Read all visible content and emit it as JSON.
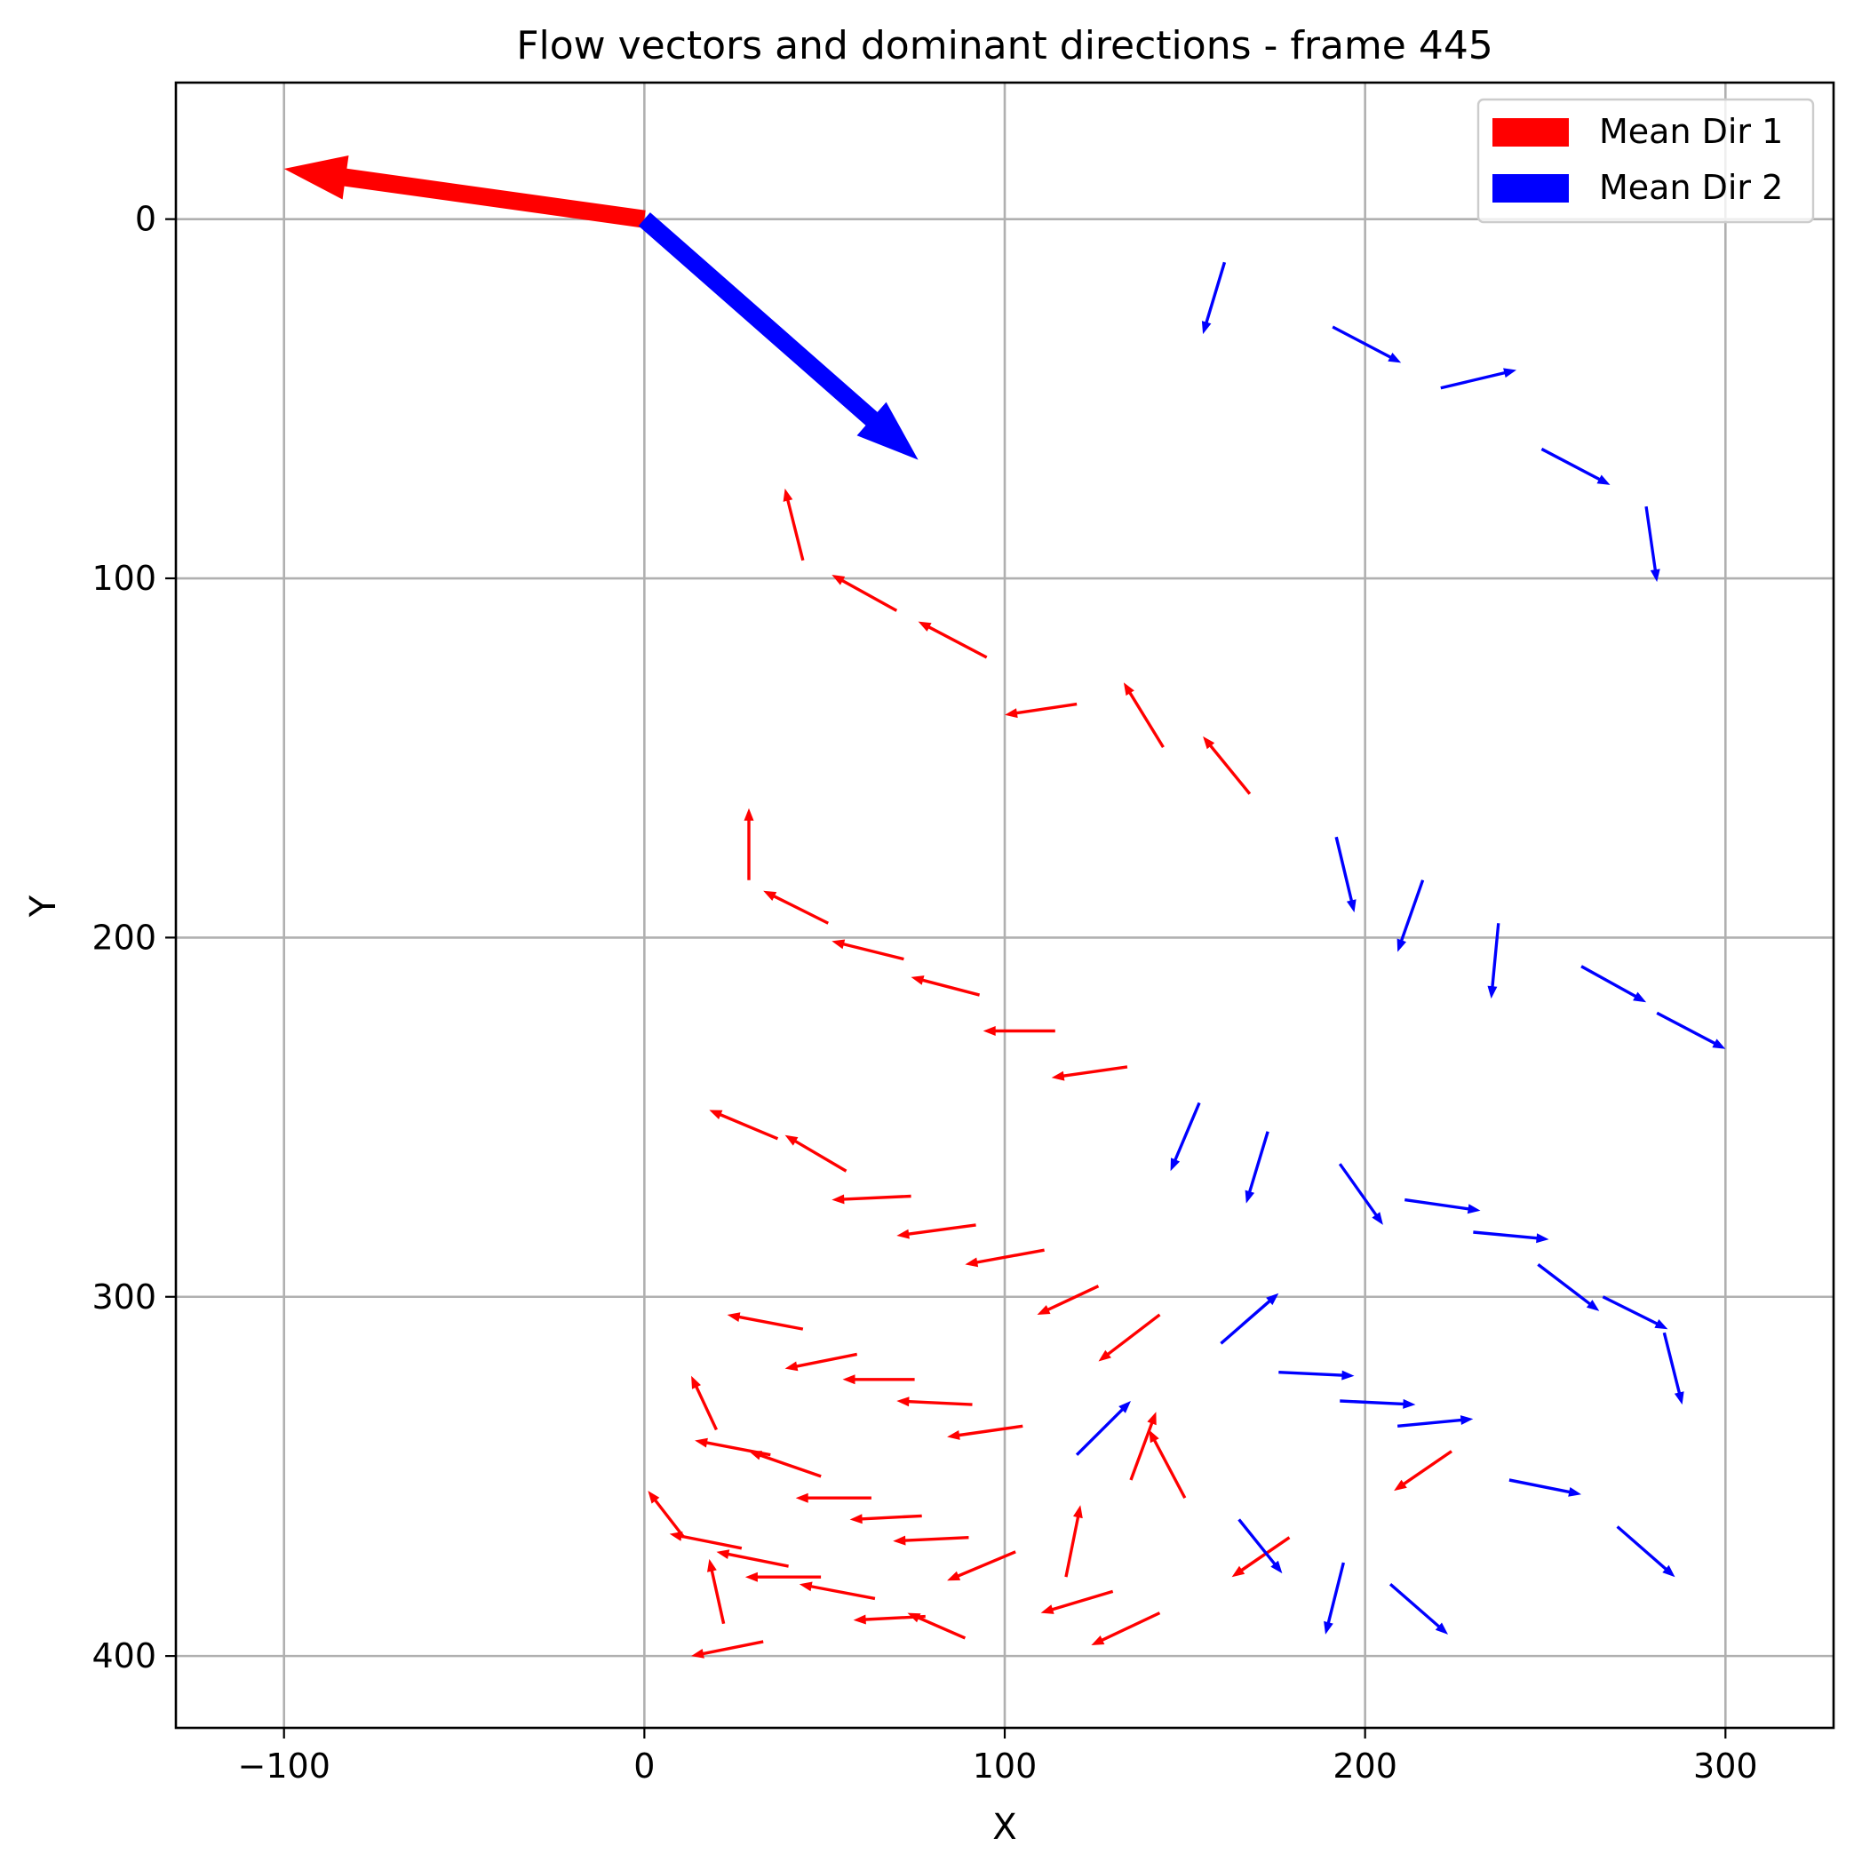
{
  "chart_data": {
    "type": "quiver",
    "title": "Flow vectors and dominant directions - frame 445",
    "xlabel": "X",
    "ylabel": "Y",
    "xlim": [
      -130,
      330
    ],
    "ylim": [
      -38,
      420
    ],
    "y_inverted": true,
    "grid": true,
    "x_ticks": [
      -100,
      0,
      100,
      200,
      300
    ],
    "x_tick_labels": [
      "−100",
      "0",
      "100",
      "200",
      "300"
    ],
    "y_ticks": [
      0,
      100,
      200,
      300,
      400
    ],
    "y_tick_labels": [
      "0",
      "100",
      "200",
      "300",
      "400"
    ],
    "legend": {
      "position": "top-right",
      "entries": [
        {
          "label": "Mean Dir 1",
          "color": "#ff0000"
        },
        {
          "label": "Mean Dir 2",
          "color": "#0000ff"
        }
      ]
    },
    "mean_directions": [
      {
        "name": "Mean Dir 1",
        "color": "#ff0000",
        "x": 0,
        "y": 0,
        "dx": -100,
        "dy": -14
      },
      {
        "name": "Mean Dir 2",
        "color": "#0000ff",
        "x": 0,
        "y": 0,
        "dx": 76,
        "dy": 67
      }
    ],
    "series": [
      {
        "name": "Mean Dir 1 vectors",
        "color": "#ff0000",
        "vectors": [
          [
            44,
            95,
            -5,
            -20
          ],
          [
            70,
            109,
            -18,
            -10
          ],
          [
            95,
            122,
            -19,
            -10
          ],
          [
            120,
            135,
            -20,
            3
          ],
          [
            144,
            147,
            -11,
            -18
          ],
          [
            168,
            160,
            -13,
            -16
          ],
          [
            29,
            184,
            0,
            -20
          ],
          [
            51,
            196,
            -18,
            -9
          ],
          [
            72,
            206,
            -20,
            -5
          ],
          [
            93,
            216,
            -19,
            -5
          ],
          [
            114,
            226,
            -20,
            0
          ],
          [
            134,
            236,
            -21,
            3
          ],
          [
            37,
            256,
            -19,
            -8
          ],
          [
            56,
            265,
            -17,
            -10
          ],
          [
            74,
            272,
            -22,
            1
          ],
          [
            92,
            280,
            -22,
            3
          ],
          [
            111,
            287,
            -22,
            4
          ],
          [
            126,
            297,
            -17,
            8
          ],
          [
            143,
            305,
            -17,
            13
          ],
          [
            44,
            309,
            -21,
            -4
          ],
          [
            59,
            316,
            -20,
            4
          ],
          [
            75,
            323,
            -20,
            0
          ],
          [
            91,
            330,
            -21,
            -1
          ],
          [
            105,
            336,
            -21,
            3
          ],
          [
            20,
            337,
            -7,
            -15
          ],
          [
            35,
            344,
            -21,
            -4
          ],
          [
            49,
            350,
            -20,
            -7
          ],
          [
            63,
            356,
            -21,
            0
          ],
          [
            77,
            361,
            -20,
            1
          ],
          [
            90,
            367,
            -21,
            1
          ],
          [
            103,
            371,
            -19,
            8
          ],
          [
            117,
            378,
            4,
            -20
          ],
          [
            135,
            351,
            7,
            -19
          ],
          [
            150,
            356,
            -10,
            -19
          ],
          [
            27,
            370,
            -20,
            -4
          ],
          [
            40,
            375,
            -20,
            -4
          ],
          [
            22,
            391,
            -4,
            -18
          ],
          [
            11,
            367,
            -10,
            -13
          ],
          [
            49,
            378,
            -21,
            0
          ],
          [
            64,
            384,
            -21,
            -4
          ],
          [
            78,
            389,
            -20,
            1
          ],
          [
            89,
            395,
            -16,
            -7
          ],
          [
            130,
            382,
            -20,
            6
          ],
          [
            143,
            388,
            -19,
            9
          ],
          [
            33,
            396,
            -20,
            4
          ],
          [
            179,
            367,
            -16,
            11
          ],
          [
            224,
            343,
            -16,
            11
          ]
        ]
      },
      {
        "name": "Mean Dir 2 vectors",
        "color": "#0000ff",
        "vectors": [
          [
            161,
            12,
            -6,
            20
          ],
          [
            191,
            30,
            19,
            10
          ],
          [
            221,
            47,
            21,
            -5
          ],
          [
            249,
            64,
            19,
            10
          ],
          [
            278,
            80,
            3,
            21
          ],
          [
            192,
            172,
            5,
            21
          ],
          [
            216,
            184,
            -7,
            20
          ],
          [
            237,
            196,
            -2,
            21
          ],
          [
            260,
            208,
            18,
            10
          ],
          [
            281,
            221,
            19,
            10
          ],
          [
            154,
            246,
            -8,
            19
          ],
          [
            173,
            254,
            -6,
            20
          ],
          [
            193,
            263,
            12,
            17
          ],
          [
            211,
            273,
            21,
            3
          ],
          [
            230,
            282,
            21,
            2
          ],
          [
            248,
            291,
            17,
            13
          ],
          [
            266,
            300,
            18,
            9
          ],
          [
            283,
            310,
            5,
            20
          ],
          [
            160,
            313,
            16,
            -14
          ],
          [
            176,
            321,
            21,
            1
          ],
          [
            193,
            329,
            21,
            1
          ],
          [
            209,
            336,
            21,
            -2
          ],
          [
            120,
            344,
            15,
            -15
          ],
          [
            240,
            351,
            20,
            4
          ],
          [
            165,
            362,
            12,
            15
          ],
          [
            194,
            374,
            -5,
            20
          ],
          [
            270,
            364,
            16,
            14
          ],
          [
            207,
            380,
            16,
            14
          ]
        ]
      }
    ]
  }
}
